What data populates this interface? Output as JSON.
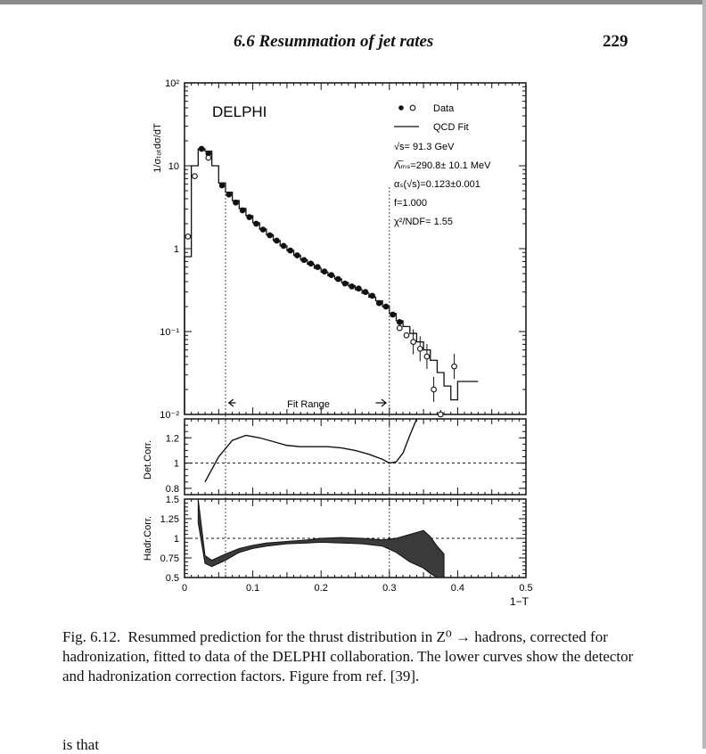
{
  "page": {
    "running_head": "6.6 Resummation of jet rates",
    "page_number": "229",
    "caption_label": "Fig. 6.12.",
    "caption_text": "Resummed prediction for the thrust distribution in Z⁰ → hadrons, corrected for hadronization, fitted to data of the DELPHI collaboration. The lower curves show the detector and hadronization correction factors. Figure from ref. [39].",
    "cut_text": "is that"
  },
  "chart_data": [
    {
      "type": "line",
      "panel": "main",
      "yscale": "log",
      "title": "DELPHI",
      "ylabel": "1/σₜₒₜdσ/dT",
      "xlabel": "1−T",
      "xlim": [
        0,
        0.5
      ],
      "ylim": [
        0.01,
        100
      ],
      "y_tick_labels": [
        "10²",
        "10",
        "1",
        "10⁻¹",
        "10⁻²"
      ],
      "legend": {
        "placement": "top-right",
        "entries": [
          "Data",
          "QCD Fit"
        ],
        "data_markers": "• ○"
      },
      "annotations": [
        "√s= 91.3 GeV",
        "Λ̅ₘₛ=290.8± 10.1 MeV",
        "αₛ(√s)=0.123±0.001",
        "f=1.000",
        "χ²/NDF= 1.55"
      ],
      "fit_range": {
        "label": "Fit Range",
        "x": [
          0.06,
          0.3
        ]
      },
      "series": [
        {
          "name": "Data",
          "marker": "filled",
          "x": [
            0.025,
            0.035,
            0.055,
            0.065,
            0.075,
            0.085,
            0.095,
            0.105,
            0.115,
            0.125,
            0.135,
            0.145,
            0.155,
            0.165,
            0.175,
            0.185,
            0.195,
            0.205,
            0.215,
            0.225,
            0.235,
            0.245,
            0.255,
            0.265,
            0.275,
            0.285,
            0.295,
            0.305,
            0.315
          ],
          "y": [
            16,
            14,
            5.8,
            4.5,
            3.6,
            2.9,
            2.4,
            2.0,
            1.7,
            1.45,
            1.25,
            1.08,
            0.95,
            0.83,
            0.73,
            0.66,
            0.6,
            0.53,
            0.48,
            0.43,
            0.38,
            0.35,
            0.33,
            0.3,
            0.27,
            0.22,
            0.2,
            0.16,
            0.13
          ]
        },
        {
          "name": "Data",
          "marker": "open",
          "x": [
            0.005,
            0.015,
            0.035,
            0.315,
            0.325,
            0.335,
            0.345,
            0.355,
            0.365,
            0.375,
            0.395
          ],
          "y": [
            1.4,
            7.5,
            12.5,
            0.11,
            0.09,
            0.075,
            0.062,
            0.05,
            0.02,
            0.008,
            0.038
          ]
        },
        {
          "name": "QCD Fit",
          "x": [
            0,
            0.01,
            0.02,
            0.03,
            0.04,
            0.05,
            0.06,
            0.07,
            0.08,
            0.09,
            0.1,
            0.11,
            0.12,
            0.13,
            0.14,
            0.15,
            0.16,
            0.17,
            0.18,
            0.19,
            0.2,
            0.21,
            0.22,
            0.23,
            0.24,
            0.25,
            0.26,
            0.27,
            0.28,
            0.29,
            0.3,
            0.31,
            0.32,
            0.33,
            0.34,
            0.35,
            0.36,
            0.37,
            0.38,
            0.39,
            0.4,
            0.41,
            0.42
          ],
          "y": [
            0.8,
            10,
            16,
            15,
            10,
            6.2,
            4.8,
            3.8,
            3.05,
            2.5,
            2.05,
            1.72,
            1.47,
            1.25,
            1.08,
            0.95,
            0.83,
            0.73,
            0.65,
            0.58,
            0.52,
            0.47,
            0.43,
            0.39,
            0.355,
            0.32,
            0.29,
            0.26,
            0.235,
            0.2,
            0.165,
            0.135,
            0.115,
            0.095,
            0.075,
            0.06,
            0.045,
            0.032,
            0.022,
            0.015,
            0.025,
            0.025,
            0.025
          ]
        }
      ]
    },
    {
      "type": "line",
      "panel": "detector-correction",
      "ylabel": "Det.Corr.",
      "ylim": [
        0.75,
        1.35
      ],
      "y_ticks": [
        0.8,
        1,
        1.2
      ],
      "reference_line": 1,
      "series": [
        {
          "name": "",
          "x": [
            0.03,
            0.05,
            0.07,
            0.09,
            0.11,
            0.13,
            0.15,
            0.17,
            0.19,
            0.21,
            0.23,
            0.25,
            0.27,
            0.29,
            0.3,
            0.31,
            0.32,
            0.33,
            0.34
          ],
          "y": [
            0.85,
            1.05,
            1.18,
            1.22,
            1.2,
            1.17,
            1.14,
            1.13,
            1.13,
            1.13,
            1.12,
            1.1,
            1.07,
            1.03,
            1.0,
            1.01,
            1.08,
            1.22,
            1.35
          ]
        }
      ]
    },
    {
      "type": "area",
      "panel": "hadronization-correction",
      "ylabel": "Hadr.Corr.",
      "xlabel": "1−T",
      "xlim": [
        0,
        0.5
      ],
      "ylim": [
        0.5,
        1.5
      ],
      "y_ticks": [
        0.5,
        0.75,
        1,
        1.25,
        1.5
      ],
      "x_ticks": [
        0,
        0.1,
        0.2,
        0.3,
        0.4,
        0.5
      ],
      "reference_line": 1,
      "series": [
        {
          "name": "",
          "x": [
            0.02,
            0.03,
            0.04,
            0.06,
            0.08,
            0.1,
            0.12,
            0.15,
            0.18,
            0.2,
            0.23,
            0.26,
            0.29,
            0.31,
            0.33,
            0.35,
            0.36,
            0.37,
            0.38
          ],
          "upper": [
            1.5,
            0.78,
            0.72,
            0.8,
            0.87,
            0.91,
            0.94,
            0.96,
            0.98,
            1.0,
            1.01,
            1.0,
            0.98,
            1.0,
            1.05,
            1.1,
            1.02,
            0.9,
            0.8
          ],
          "lower": [
            1.2,
            0.68,
            0.64,
            0.72,
            0.82,
            0.87,
            0.9,
            0.93,
            0.94,
            0.95,
            0.94,
            0.93,
            0.9,
            0.82,
            0.7,
            0.62,
            0.55,
            0.5,
            0.5
          ]
        }
      ]
    }
  ]
}
